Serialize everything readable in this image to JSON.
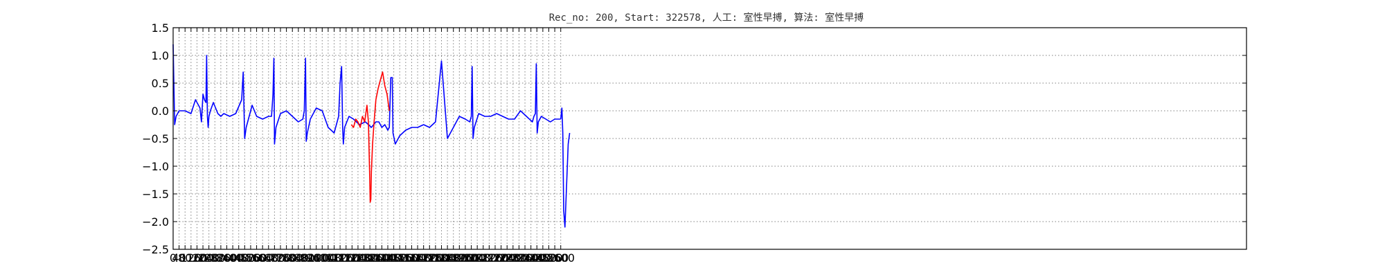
{
  "chart_data": {
    "type": "line",
    "title": "Rec_no: 200, Start: 322578, 人工: 室性早搏, 算法: 室性早搏",
    "xlabel": "",
    "ylabel": "",
    "xlim": [
      0,
      7200
    ],
    "ylim": [
      -2.5,
      1.5
    ],
    "grid": true,
    "yticks": [
      "1.5",
      "1.0",
      "0.5",
      "0.0",
      "−0.5",
      "−1.0",
      "−1.5",
      "−2.0",
      "−2.5"
    ],
    "ytick_values": [
      1.5,
      1.0,
      0.5,
      0.0,
      -0.5,
      -1.0,
      -1.5,
      -2.0,
      -2.5
    ],
    "xticks": [
      "0",
      "40",
      "80",
      "120",
      "160",
      "200",
      "240",
      "280",
      "320",
      "360",
      "400",
      "440",
      "480",
      "520",
      "560",
      "600",
      "640",
      "680",
      "720",
      "760",
      "800",
      "840",
      "880",
      "920",
      "960",
      "1000",
      "1040",
      "1080",
      "1120",
      "1160",
      "1200",
      "1240",
      "1280",
      "1320",
      "1360",
      "1400",
      "1440",
      "1480",
      "1520",
      "1560",
      "1600",
      "1640",
      "1680",
      "1720",
      "1760",
      "1800",
      "1840",
      "1880",
      "1920",
      "1960",
      "2000",
      "2040",
      "2080",
      "2120",
      "2160",
      "2200",
      "2240",
      "2280",
      "2320",
      "2360",
      "2400",
      "2440",
      "2480",
      "2520",
      "2560",
      "2600"
    ],
    "xtick_values": [
      0,
      40,
      80,
      120,
      160,
      200,
      240,
      280,
      320,
      360,
      400,
      440,
      480,
      520,
      560,
      600,
      640,
      680,
      720,
      760,
      800,
      840,
      880,
      920,
      960,
      1000,
      1040,
      1080,
      1120,
      1160,
      1200,
      1240,
      1280,
      1320,
      1360,
      1400,
      1440,
      1480,
      1520,
      1560,
      1600,
      1640,
      1680,
      1720,
      1760,
      1800,
      1840,
      1880,
      1920,
      1960,
      2000,
      2040,
      2080,
      2120,
      2160,
      2200,
      2240,
      2280,
      2320,
      2360,
      2400,
      2440,
      2480,
      2520,
      2560,
      2600
    ],
    "series": [
      {
        "color": "#0000ff",
        "x": [
          0,
          10,
          20,
          40,
          80,
          120,
          150,
          180,
          190,
          200,
          210,
          220,
          225,
          230,
          235,
          240,
          250,
          270,
          300,
          320,
          340,
          380,
          420,
          460,
          470,
          480,
          490,
          510,
          530,
          560,
          600,
          640,
          660,
          670,
          676,
          680,
          690,
          720,
          760,
          800,
          840,
          870,
          880,
          888,
          893,
          900,
          920,
          960,
          1000,
          1040,
          1080,
          1110,
          1120,
          1130,
          1137,
          1142,
          1150,
          1180,
          1210,
          1250,
          1290,
          1330,
          1360,
          1380,
          1400,
          1420,
          1440,
          1450,
          1460,
          1470,
          1475,
          1490,
          1520,
          1560,
          1600,
          1640,
          1680,
          1720,
          1760,
          1800,
          1840,
          1880,
          1920,
          1960,
          1990,
          2000,
          2006,
          2012,
          2020,
          2050,
          2090,
          2130,
          2170,
          2210,
          2250,
          2290,
          2330,
          2370,
          2410,
          2420,
          2430,
          2436,
          2442,
          2450,
          2470,
          2500,
          2530,
          2560,
          2600
        ],
        "y": [
          1.2,
          -0.25,
          -0.1,
          0.0,
          0.0,
          -0.05,
          0.2,
          0.05,
          -0.2,
          0.3,
          0.2,
          0.15,
          1.0,
          -0.1,
          -0.3,
          -0.1,
          0.0,
          0.15,
          -0.05,
          -0.1,
          -0.05,
          -0.1,
          -0.05,
          0.2,
          0.7,
          -0.5,
          -0.3,
          -0.1,
          0.1,
          -0.1,
          -0.15,
          -0.1,
          -0.1,
          0.3,
          0.95,
          -0.6,
          -0.3,
          -0.05,
          0.0,
          -0.1,
          -0.2,
          -0.15,
          0.0,
          0.95,
          -0.55,
          -0.4,
          -0.15,
          0.05,
          0.0,
          -0.3,
          -0.4,
          -0.1,
          0.5,
          0.8,
          -0.3,
          -0.6,
          -0.3,
          -0.1,
          -0.15,
          -0.25,
          -0.2,
          -0.3,
          -0.2,
          -0.2,
          -0.3,
          -0.25,
          -0.35,
          -0.3,
          0.6,
          0.6,
          -0.4,
          -0.6,
          -0.45,
          -0.35,
          -0.3,
          -0.3,
          -0.25,
          -0.3,
          -0.2,
          0.9,
          -0.5,
          -0.3,
          -0.1,
          -0.15,
          -0.2,
          -0.1,
          0.8,
          -0.5,
          -0.3,
          -0.05,
          -0.1,
          -0.1,
          -0.05,
          -0.1,
          -0.15,
          -0.15,
          0.0,
          -0.1,
          -0.2,
          -0.1,
          -0.05,
          0.85,
          -0.4,
          -0.2,
          -0.1,
          -0.15,
          -0.2,
          -0.15,
          -0.15
        ]
      },
      {
        "color": "#ff0000",
        "x": [
          1195,
          1210,
          1225,
          1240,
          1255,
          1270,
          1285,
          1300,
          1310,
          1318,
          1322,
          1326,
          1330,
          1338,
          1348,
          1360,
          1375,
          1390,
          1405,
          1420,
          1435,
          1450
        ],
        "y": [
          -0.25,
          -0.3,
          -0.15,
          -0.2,
          -0.3,
          -0.1,
          -0.2,
          0.1,
          -0.2,
          -1.1,
          -1.65,
          -1.6,
          -1.1,
          -0.6,
          -0.2,
          0.2,
          0.4,
          0.55,
          0.7,
          0.45,
          0.3,
          0.0
        ]
      },
      {
        "color": "#0000ff",
        "x": [
          2600,
          2608,
          2614,
          2620,
          2628,
          2640,
          2650,
          2660
        ],
        "y": [
          -0.15,
          0.05,
          -0.4,
          -1.8,
          -2.1,
          -1.3,
          -0.6,
          -0.4
        ]
      }
    ]
  }
}
